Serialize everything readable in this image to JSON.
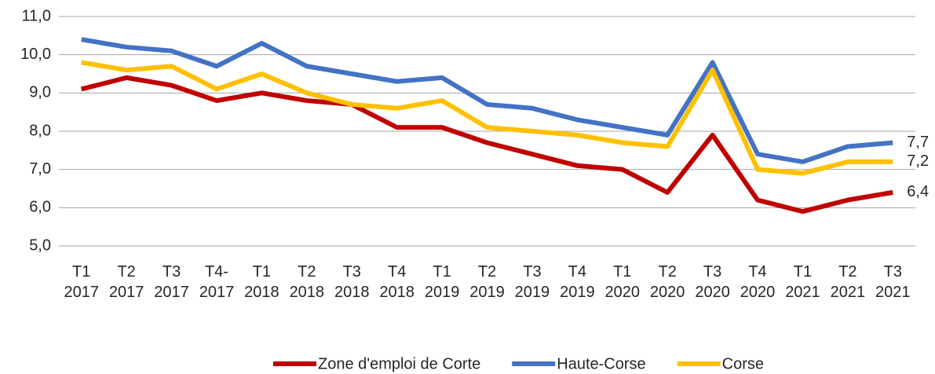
{
  "chart_data": {
    "type": "line",
    "categories": [
      "T1 2017",
      "T2 2017",
      "T3 2017",
      "T4-2017",
      "T1 2018",
      "T2 2018",
      "T3 2018",
      "T4 2018",
      "T1 2019",
      "T2 2019",
      "T3 2019",
      "T4 2019",
      "T1 2020",
      "T2 2020",
      "T3 2020",
      "T4 2020",
      "T1 2021",
      "T2 2021",
      "T3 2021"
    ],
    "series": [
      {
        "name": "Zone d'emploi de Corte",
        "color": "#c00000",
        "values": [
          9.1,
          9.4,
          9.2,
          8.8,
          9.0,
          8.8,
          8.7,
          8.1,
          8.1,
          7.7,
          7.4,
          7.1,
          7.0,
          6.4,
          7.9,
          6.2,
          5.9,
          6.2,
          6.4
        ],
        "value_labels": [
          null,
          null,
          null,
          null,
          null,
          null,
          null,
          null,
          null,
          null,
          null,
          null,
          null,
          null,
          null,
          null,
          null,
          null,
          "6,4"
        ]
      },
      {
        "name": "Haute-Corse",
        "color": "#4472c4",
        "values": [
          10.4,
          10.2,
          10.1,
          9.7,
          10.3,
          9.7,
          9.5,
          9.3,
          9.4,
          8.7,
          8.6,
          8.3,
          8.1,
          7.9,
          9.8,
          7.4,
          7.2,
          7.6,
          7.7
        ],
        "value_labels": [
          null,
          null,
          null,
          null,
          null,
          null,
          null,
          null,
          null,
          null,
          null,
          null,
          null,
          null,
          null,
          null,
          null,
          null,
          "7,7"
        ]
      },
      {
        "name": "Corse",
        "color": "#ffc000",
        "values": [
          9.8,
          9.6,
          9.7,
          9.1,
          9.5,
          9.0,
          8.7,
          8.6,
          8.8,
          8.1,
          8.0,
          7.9,
          7.7,
          7.6,
          9.6,
          7.0,
          6.9,
          7.2,
          7.2
        ],
        "value_labels": [
          null,
          null,
          null,
          null,
          null,
          null,
          null,
          null,
          null,
          null,
          null,
          null,
          null,
          null,
          null,
          null,
          null,
          null,
          "7,2"
        ]
      }
    ],
    "ylim": [
      5,
      11
    ],
    "yticks": [
      {
        "value": 5,
        "label": "5,0"
      },
      {
        "value": 6,
        "label": "6,0"
      },
      {
        "value": 7,
        "label": "7,0"
      },
      {
        "value": 8,
        "label": "8,0"
      },
      {
        "value": 9,
        "label": "9,0"
      },
      {
        "value": 10,
        "label": "10,0"
      },
      {
        "value": 11,
        "label": "11,0"
      }
    ],
    "grid": true,
    "legend": "bottom"
  }
}
